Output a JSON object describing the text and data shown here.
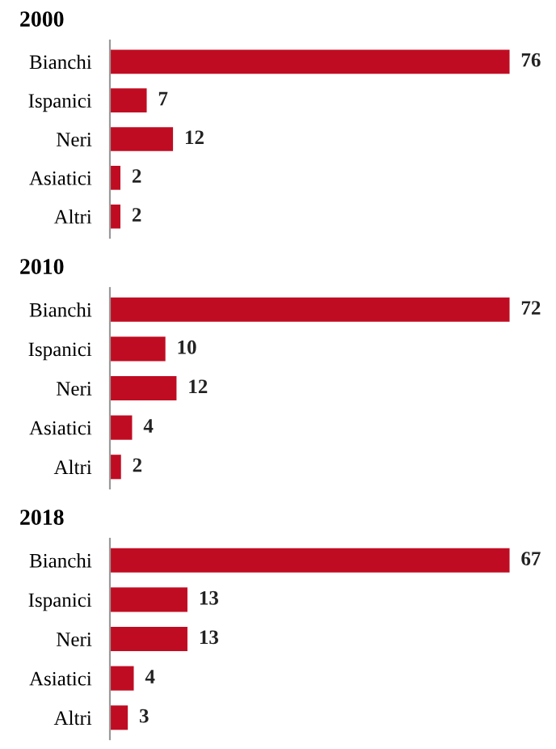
{
  "chart_data": [
    {
      "type": "bar",
      "orientation": "horizontal",
      "title": "2000",
      "categories": [
        "Bianchi",
        "Ispanici",
        "Neri",
        "Asiatici",
        "Altri"
      ],
      "values": [
        76,
        7,
        12,
        2,
        2
      ],
      "color": "#c00c22",
      "data_labels": true,
      "tick_labels": "y",
      "grid": false,
      "legend": false
    },
    {
      "type": "bar",
      "orientation": "horizontal",
      "title": "2010",
      "categories": [
        "Bianchi",
        "Ispanici",
        "Neri",
        "Asiatici",
        "Altri"
      ],
      "values": [
        72,
        10,
        12,
        4,
        2
      ],
      "color": "#c00c22",
      "data_labels": true,
      "tick_labels": "y",
      "grid": false,
      "legend": false
    },
    {
      "type": "bar",
      "orientation": "horizontal",
      "title": "2018",
      "categories": [
        "Bianchi",
        "Ispanici",
        "Neri",
        "Asiatici",
        "Altri"
      ],
      "values": [
        67,
        13,
        13,
        4,
        3
      ],
      "color": "#c00c22",
      "data_labels": true,
      "tick_labels": "y",
      "grid": false,
      "legend": false
    }
  ]
}
